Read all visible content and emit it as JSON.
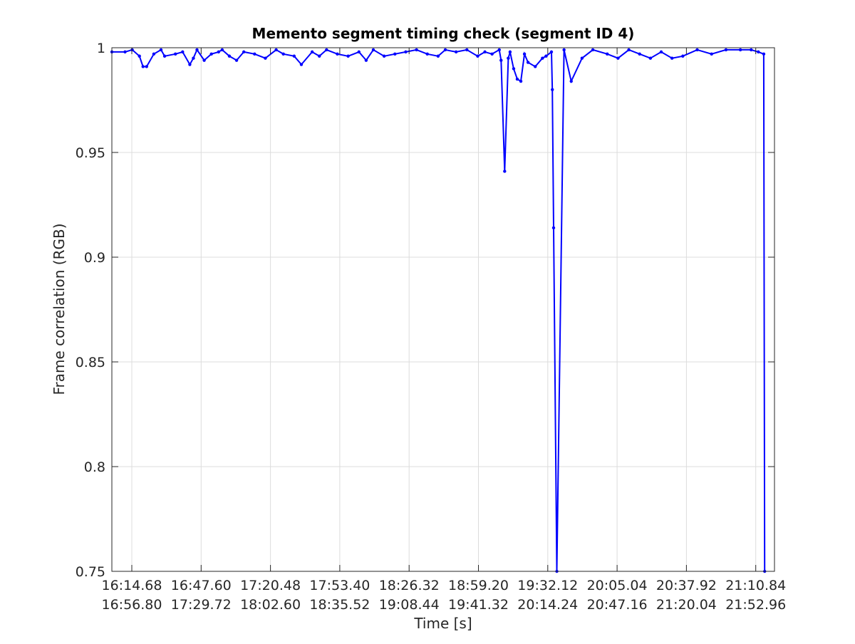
{
  "chart_data": {
    "type": "line",
    "title": "Memento segment timing check (segment ID 4)",
    "xlabel": "Time [s]",
    "ylabel": "Frame correlation (RGB)",
    "ylim": [
      0.75,
      1.0
    ],
    "yticks": [
      "0.75",
      "0.8",
      "0.85",
      "0.9",
      "0.95",
      "1"
    ],
    "xlim_seconds": [
      964.68,
      1332.96
    ],
    "xtick_rows": [
      [
        "16:14.68",
        "16:47.60",
        "17:20.48",
        "17:53.40",
        "18:26.32",
        "18:59.20",
        "19:32.12",
        "20:05.04",
        "20:37.92",
        "21:10.84"
      ],
      [
        "16:56.80",
        "17:29.72",
        "18:02.60",
        "18:35.52",
        "19:08.44",
        "19:41.32",
        "20:14.24",
        "20:47.16",
        "21:20.04",
        "21:52.96"
      ]
    ],
    "grid": true,
    "series": [
      {
        "color": "#0000ff",
        "marker": "dot",
        "x": [
          964.7,
          972.0,
          976.0,
          980.0,
          982.0,
          984.0,
          988.0,
          992.0,
          994.0,
          1000.0,
          1004.0,
          1008.0,
          1010.0,
          1012.0,
          1016.0,
          1020.0,
          1024.0,
          1026.0,
          1030.0,
          1034.0,
          1038.0,
          1044.0,
          1050.0,
          1056.0,
          1060.0,
          1066.0,
          1070.0,
          1076.0,
          1080.0,
          1084.0,
          1090.0,
          1096.0,
          1102.0,
          1106.0,
          1110.0,
          1116.0,
          1122.0,
          1128.0,
          1134.0,
          1140.0,
          1146.0,
          1150.0,
          1156.0,
          1162.0,
          1168.0,
          1172.0,
          1176.0,
          1180.0,
          1181.0,
          1183.0,
          1185.0,
          1186.0,
          1188.0,
          1190.0,
          1192.0,
          1194.0,
          1196.0,
          1200.0,
          1204.0,
          1206.0,
          1209.0,
          1209.5,
          1210.2,
          1212.0,
          1216.0,
          1220.0,
          1226.0,
          1232.0,
          1240.0,
          1246.0,
          1252.0,
          1258.0,
          1264.0,
          1270.0,
          1276.0,
          1282.0,
          1290.0,
          1298.0,
          1306.0,
          1314.0,
          1320.0,
          1324.0,
          1327.0,
          1327.5
        ],
        "y": [
          0.998,
          0.998,
          0.999,
          0.996,
          0.991,
          0.991,
          0.997,
          0.999,
          0.996,
          0.997,
          0.998,
          0.992,
          0.995,
          0.999,
          0.994,
          0.997,
          0.998,
          0.999,
          0.996,
          0.994,
          0.998,
          0.997,
          0.995,
          0.999,
          0.997,
          0.996,
          0.992,
          0.998,
          0.996,
          0.999,
          0.997,
          0.996,
          0.998,
          0.994,
          0.999,
          0.996,
          0.997,
          0.998,
          0.999,
          0.997,
          0.996,
          0.999,
          0.998,
          0.999,
          0.996,
          0.998,
          0.997,
          0.999,
          0.994,
          0.941,
          0.995,
          0.998,
          0.99,
          0.985,
          0.984,
          0.997,
          0.993,
          0.991,
          0.995,
          0.996,
          0.998,
          0.98,
          0.914,
          0.75,
          0.999,
          0.984,
          0.995,
          0.999,
          0.997,
          0.995,
          0.999,
          0.997,
          0.995,
          0.998,
          0.995,
          0.996,
          0.999,
          0.997,
          0.999,
          0.999,
          0.999,
          0.998,
          0.997,
          0.75
        ]
      }
    ]
  }
}
